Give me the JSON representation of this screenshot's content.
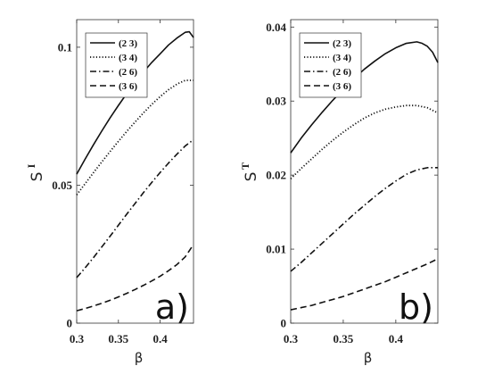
{
  "chart_data": [
    {
      "type": "line",
      "panel_label": "a)",
      "xlabel": "β",
      "ylabel_main": "S",
      "ylabel_sup": "I",
      "xlim": [
        0.3,
        0.44
      ],
      "ylim": [
        0,
        0.11
      ],
      "xticks": [
        0.3,
        0.35,
        0.4
      ],
      "xtick_labels": [
        "0.3",
        "0.35",
        "0.4"
      ],
      "yticks": [
        0,
        0.05,
        0.1
      ],
      "ytick_labels": [
        "0",
        "0.05",
        "0.1"
      ],
      "legend_position": "top-left",
      "grid": false,
      "series": [
        {
          "name": "(2 3)",
          "style": "solid",
          "x": [
            0.3,
            0.31,
            0.32,
            0.33,
            0.34,
            0.35,
            0.36,
            0.37,
            0.38,
            0.39,
            0.4,
            0.41,
            0.42,
            0.43,
            0.435,
            0.44
          ],
          "y": [
            0.054,
            0.0594,
            0.0646,
            0.0696,
            0.0744,
            0.0789,
            0.0832,
            0.0872,
            0.091,
            0.0945,
            0.0976,
            0.1008,
            0.1033,
            0.1054,
            0.1056,
            0.1035
          ]
        },
        {
          "name": "(3 4)",
          "style": "dotted",
          "x": [
            0.3,
            0.31,
            0.32,
            0.33,
            0.34,
            0.35,
            0.36,
            0.37,
            0.38,
            0.39,
            0.4,
            0.41,
            0.42,
            0.43,
            0.44
          ],
          "y": [
            0.0465,
            0.0505,
            0.0545,
            0.0584,
            0.0622,
            0.0659,
            0.0695,
            0.0729,
            0.0762,
            0.0793,
            0.0821,
            0.0846,
            0.0866,
            0.088,
            0.088
          ]
        },
        {
          "name": "(2 6)",
          "style": "dashdot",
          "x": [
            0.3,
            0.31,
            0.32,
            0.33,
            0.34,
            0.35,
            0.36,
            0.37,
            0.38,
            0.39,
            0.4,
            0.41,
            0.42,
            0.43,
            0.44
          ],
          "y": [
            0.0165,
            0.02,
            0.0237,
            0.0276,
            0.0315,
            0.0355,
            0.0395,
            0.0434,
            0.0473,
            0.051,
            0.0546,
            0.058,
            0.0612,
            0.0642,
            0.0665
          ]
        },
        {
          "name": "(3 6)",
          "style": "dashed",
          "x": [
            0.3,
            0.31,
            0.32,
            0.33,
            0.34,
            0.35,
            0.36,
            0.37,
            0.38,
            0.39,
            0.4,
            0.41,
            0.42,
            0.43,
            0.44
          ],
          "y": [
            0.0045,
            0.0053,
            0.0062,
            0.0072,
            0.0083,
            0.0095,
            0.0108,
            0.0122,
            0.0137,
            0.0153,
            0.017,
            0.019,
            0.0212,
            0.024,
            0.0285
          ]
        }
      ]
    },
    {
      "type": "line",
      "panel_label": "b)",
      "xlabel": "β",
      "ylabel_main": "S",
      "ylabel_sup": "T",
      "xlim": [
        0.3,
        0.44
      ],
      "ylim": [
        0,
        0.041
      ],
      "xticks": [
        0.3,
        0.35,
        0.4
      ],
      "xtick_labels": [
        "0.3",
        "0.35",
        "0.4"
      ],
      "yticks": [
        0,
        0.01,
        0.02,
        0.03,
        0.04
      ],
      "ytick_labels": [
        "0",
        "0.01",
        "0.02",
        "0.03",
        "0.04"
      ],
      "legend_position": "top-left",
      "grid": false,
      "series": [
        {
          "name": "(2 3)",
          "style": "solid",
          "x": [
            0.3,
            0.31,
            0.32,
            0.33,
            0.34,
            0.35,
            0.36,
            0.37,
            0.38,
            0.39,
            0.4,
            0.41,
            0.42,
            0.425,
            0.43,
            0.435,
            0.44
          ],
          "y": [
            0.023,
            0.025,
            0.0268,
            0.0285,
            0.0301,
            0.0316,
            0.033,
            0.0343,
            0.0354,
            0.0364,
            0.0372,
            0.0378,
            0.038,
            0.0378,
            0.0374,
            0.0366,
            0.0352
          ]
        },
        {
          "name": "(3 4)",
          "style": "dotted",
          "x": [
            0.3,
            0.31,
            0.32,
            0.33,
            0.34,
            0.35,
            0.36,
            0.37,
            0.38,
            0.39,
            0.4,
            0.41,
            0.42,
            0.43,
            0.44
          ],
          "y": [
            0.0195,
            0.0209,
            0.0222,
            0.0235,
            0.0247,
            0.0258,
            0.0268,
            0.0277,
            0.0284,
            0.0289,
            0.0292,
            0.0294,
            0.0294,
            0.0291,
            0.0284
          ]
        },
        {
          "name": "(2 6)",
          "style": "dashdot",
          "x": [
            0.3,
            0.31,
            0.32,
            0.33,
            0.34,
            0.35,
            0.36,
            0.37,
            0.38,
            0.39,
            0.4,
            0.41,
            0.42,
            0.43,
            0.44
          ],
          "y": [
            0.007,
            0.0082,
            0.0095,
            0.0108,
            0.0121,
            0.0134,
            0.0147,
            0.0159,
            0.0171,
            0.0182,
            0.0192,
            0.0201,
            0.0207,
            0.021,
            0.021
          ]
        },
        {
          "name": "(3 6)",
          "style": "dashed",
          "x": [
            0.3,
            0.31,
            0.32,
            0.33,
            0.34,
            0.35,
            0.36,
            0.37,
            0.38,
            0.39,
            0.4,
            0.41,
            0.42,
            0.43,
            0.44
          ],
          "y": [
            0.0018,
            0.0021,
            0.0024,
            0.0028,
            0.0032,
            0.0036,
            0.0041,
            0.0046,
            0.0051,
            0.0056,
            0.0062,
            0.0068,
            0.0074,
            0.008,
            0.0087
          ]
        }
      ]
    }
  ]
}
